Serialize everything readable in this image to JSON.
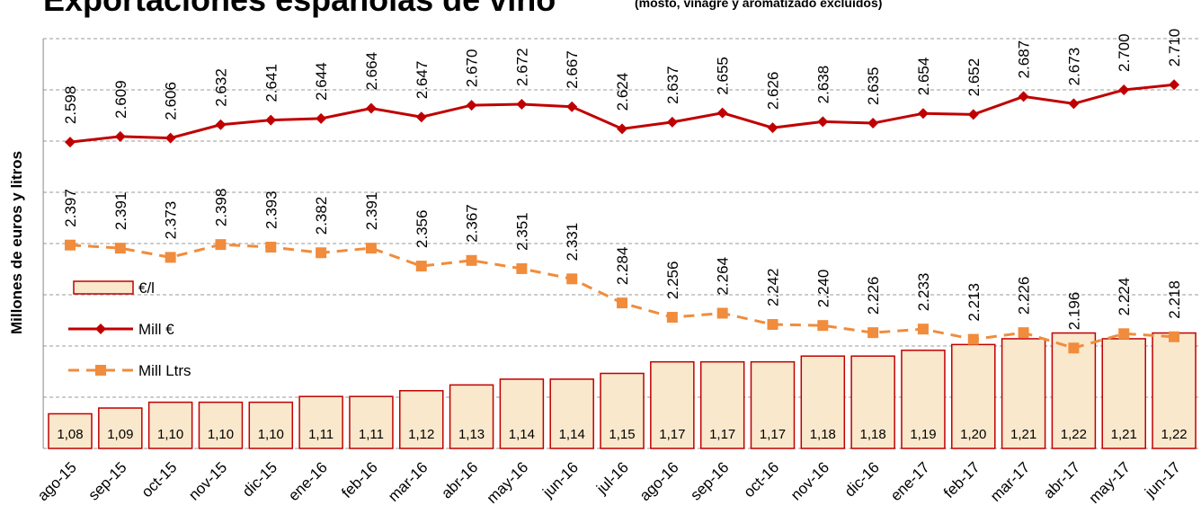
{
  "chart_data": {
    "type": "combo",
    "title": "Exportaciones españolas de vino",
    "subtitle": "(mosto, vinagre y aromatizado excluidos)",
    "y_label": "Millones de euros y litros",
    "categories": [
      "ago-15",
      "sep-15",
      "oct-15",
      "nov-15",
      "dic-15",
      "ene-16",
      "feb-16",
      "mar-16",
      "abr-16",
      "may-16",
      "jun-16",
      "jul-16",
      "ago-16",
      "sep-16",
      "oct-16",
      "nov-16",
      "dic-16",
      "ene-17",
      "feb-17",
      "mar-17",
      "abr-17",
      "may-17",
      "jun-17"
    ],
    "ylim": [
      2000,
      2800
    ],
    "y2lim": [
      1.02,
      1.73
    ],
    "grid": true,
    "legend": "left",
    "series": [
      {
        "name": "€/l",
        "type": "bar",
        "axis": "y2",
        "color": "#f9e8cc",
        "edge": "#c00000",
        "values": [
          1.08,
          1.09,
          1.1,
          1.1,
          1.1,
          1.11,
          1.11,
          1.12,
          1.13,
          1.14,
          1.14,
          1.15,
          1.17,
          1.17,
          1.17,
          1.18,
          1.18,
          1.19,
          1.2,
          1.21,
          1.22,
          1.21,
          1.22
        ],
        "value_labels": [
          "1,08",
          "1,09",
          "1,10",
          "1,10",
          "1,10",
          "1,11",
          "1,11",
          "1,12",
          "1,13",
          "1,14",
          "1,14",
          "1,15",
          "1,17",
          "1,17",
          "1,17",
          "1,18",
          "1,18",
          "1,19",
          "1,20",
          "1,21",
          "1,22",
          "1,21",
          "1,22"
        ]
      },
      {
        "name": "Mill €",
        "type": "line",
        "color": "#c00000",
        "marker": "diamond",
        "dash": false,
        "values": [
          2598,
          2609,
          2606,
          2632,
          2641,
          2644,
          2664,
          2647,
          2670,
          2672,
          2667,
          2624,
          2637,
          2655,
          2626,
          2638,
          2635,
          2654,
          2652,
          2687,
          2673,
          2700,
          2710
        ],
        "value_labels": [
          "2.598",
          "2.609",
          "2.606",
          "2.632",
          "2.641",
          "2.644",
          "2.664",
          "2.647",
          "2.670",
          "2.672",
          "2.667",
          "2.624",
          "2.637",
          "2.655",
          "2.626",
          "2.638",
          "2.635",
          "2.654",
          "2.652",
          "2.687",
          "2.673",
          "2.700",
          "2.710"
        ]
      },
      {
        "name": "Mill Ltrs",
        "type": "line",
        "color": "#f08c3c",
        "marker": "square",
        "dash": true,
        "values": [
          2397,
          2391,
          2373,
          2398,
          2393,
          2382,
          2391,
          2356,
          2367,
          2351,
          2331,
          2284,
          2256,
          2264,
          2242,
          2240,
          2226,
          2233,
          2213,
          2226,
          2196,
          2224,
          2218
        ],
        "value_labels": [
          "2.397",
          "2.391",
          "2.373",
          "2.398",
          "2.393",
          "2.382",
          "2.391",
          "2.356",
          "2.367",
          "2.351",
          "2.331",
          "2.284",
          "2.256",
          "2.264",
          "2.242",
          "2.240",
          "2.226",
          "2.233",
          "2.213",
          "2.226",
          "2.196",
          "2.224",
          "2.218"
        ]
      }
    ]
  }
}
